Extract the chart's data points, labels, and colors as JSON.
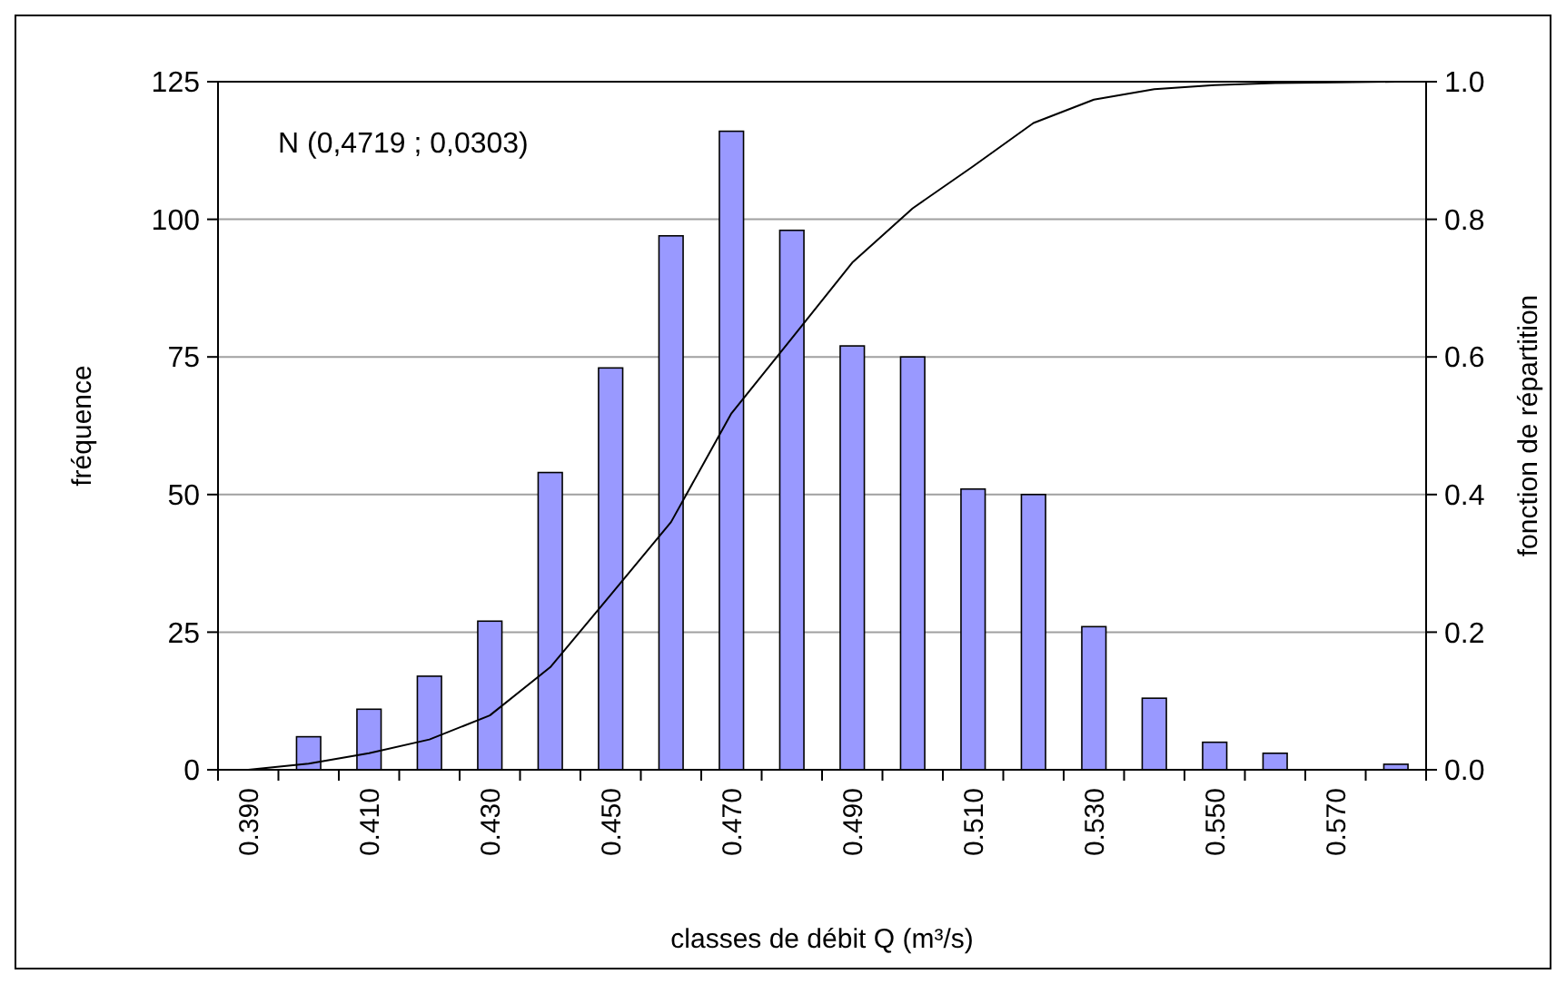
{
  "chart_data": {
    "type": "bar",
    "xlabel": "classes de débit Q (m³/s)",
    "ylabel": "fréquence",
    "y2label": "fonction de répartition",
    "annotations": [
      "N (0,4719 ; 0,0303)"
    ],
    "categories": [
      "0.390",
      null,
      "0.410",
      null,
      "0.430",
      null,
      "0.450",
      null,
      "0.470",
      null,
      "0.490",
      null,
      "0.510",
      null,
      "0.530",
      null,
      "0.550",
      null,
      "0.570",
      null
    ],
    "series": [
      {
        "color": "#9999ff",
        "values": [
          0,
          6,
          11,
          17,
          27,
          54,
          73,
          97,
          116,
          98,
          77,
          75,
          51,
          50,
          26,
          13,
          5,
          3,
          0,
          1
        ]
      },
      {
        "type": "line",
        "axis": "y2",
        "color": "#000000",
        "values": [
          0,
          0.009,
          0.024,
          0.044,
          0.079,
          0.149,
          0.254,
          0.36,
          0.518,
          0.627,
          0.737,
          0.816,
          0.877,
          0.94,
          0.974,
          0.989,
          0.995,
          0.998,
          0.999,
          1.0
        ]
      }
    ],
    "ylim": [
      0,
      125
    ],
    "yticks": [
      0,
      25,
      50,
      75,
      100,
      125
    ],
    "y2lim": [
      0,
      1
    ],
    "y2ticks": [
      {
        "value": 0,
        "label": "0.0"
      },
      {
        "value": 0.2,
        "label": "0.2"
      },
      {
        "value": 0.4,
        "label": "0.4"
      },
      {
        "value": 0.6,
        "label": "0.6"
      },
      {
        "value": 0.8,
        "label": "0.8"
      },
      {
        "value": 1,
        "label": "1.0"
      }
    ],
    "grid": "y",
    "marker": "none",
    "line_style": "solid"
  }
}
